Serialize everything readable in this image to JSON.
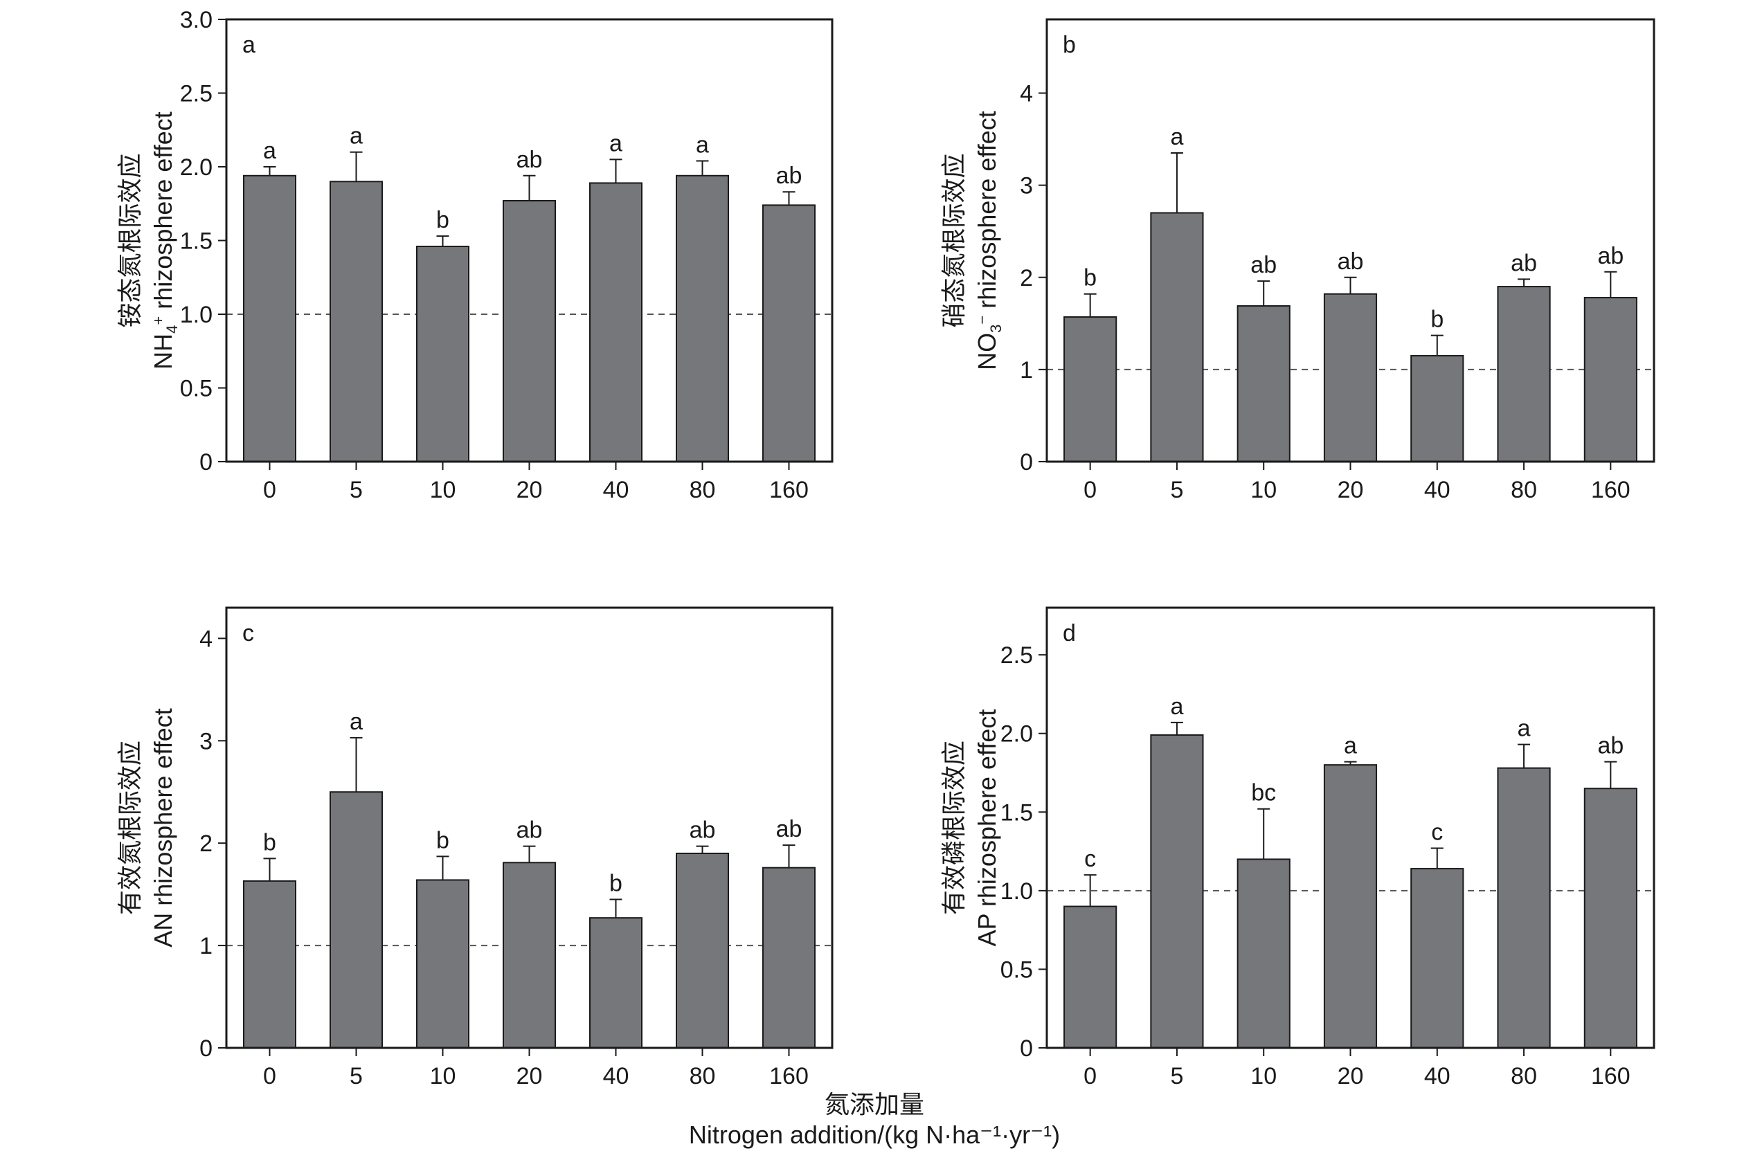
{
  "chart_data": [
    {
      "type": "bar",
      "panel": "a",
      "ylabel_zh": "铵态氮根际效应",
      "ylabel_en": {
        "pre": "NH",
        "sub": "4",
        "sup": "+",
        "post": " rhizosphere effect"
      },
      "categories": [
        "0",
        "5",
        "10",
        "20",
        "40",
        "80",
        "160"
      ],
      "values": [
        1.94,
        1.9,
        1.46,
        1.77,
        1.89,
        1.94,
        1.74
      ],
      "errors": [
        0.06,
        0.2,
        0.07,
        0.17,
        0.16,
        0.1,
        0.09
      ],
      "significance": [
        "a",
        "a",
        "b",
        "ab",
        "a",
        "a",
        "ab"
      ],
      "ylim": [
        0,
        3.0
      ],
      "yticks": [
        0,
        0.5,
        1.0,
        1.5,
        2.0,
        2.5,
        3.0
      ],
      "ytick_labels": [
        "0",
        "0.5",
        "1.0",
        "1.5",
        "2.0",
        "2.5",
        "3.0"
      ],
      "reference_line": 1.0
    },
    {
      "type": "bar",
      "panel": "b",
      "ylabel_zh": "硝态氮根际效应",
      "ylabel_en": {
        "pre": "NO",
        "sub": "3",
        "sup": "−",
        "post": " rhizosphere effect"
      },
      "categories": [
        "0",
        "5",
        "10",
        "20",
        "40",
        "80",
        "160"
      ],
      "values": [
        1.57,
        2.7,
        1.69,
        1.82,
        1.15,
        1.9,
        1.78
      ],
      "errors": [
        0.25,
        0.65,
        0.27,
        0.18,
        0.22,
        0.08,
        0.28
      ],
      "significance": [
        "b",
        "a",
        "ab",
        "ab",
        "b",
        "ab",
        "ab"
      ],
      "ylim": [
        0,
        4.8
      ],
      "yticks": [
        0,
        1,
        2,
        3,
        4
      ],
      "ytick_labels": [
        "0",
        "1",
        "2",
        "3",
        "4"
      ],
      "reference_line": 1.0
    },
    {
      "type": "bar",
      "panel": "c",
      "ylabel_zh": "有效氮根际效应",
      "ylabel_en": {
        "pre": "AN rhizosphere effect",
        "sub": "",
        "sup": "",
        "post": ""
      },
      "categories": [
        "0",
        "5",
        "10",
        "20",
        "40",
        "80",
        "160"
      ],
      "values": [
        1.63,
        2.5,
        1.64,
        1.81,
        1.27,
        1.9,
        1.76
      ],
      "errors": [
        0.22,
        0.53,
        0.23,
        0.16,
        0.18,
        0.07,
        0.22
      ],
      "significance": [
        "b",
        "a",
        "b",
        "ab",
        "b",
        "ab",
        "ab"
      ],
      "ylim": [
        0,
        4.3
      ],
      "yticks": [
        0,
        1,
        2,
        3,
        4
      ],
      "ytick_labels": [
        "0",
        "1",
        "2",
        "3",
        "4"
      ],
      "reference_line": 1.0
    },
    {
      "type": "bar",
      "panel": "d",
      "ylabel_zh": "有效磷根际效应",
      "ylabel_en": {
        "pre": "AP rhizosphere effect",
        "sub": "",
        "sup": "",
        "post": ""
      },
      "categories": [
        "0",
        "5",
        "10",
        "20",
        "40",
        "80",
        "160"
      ],
      "values": [
        0.9,
        1.99,
        1.2,
        1.8,
        1.14,
        1.78,
        1.65
      ],
      "errors": [
        0.2,
        0.08,
        0.32,
        0.02,
        0.13,
        0.15,
        0.17
      ],
      "significance": [
        "c",
        "a",
        "bc",
        "a",
        "c",
        "a",
        "ab"
      ],
      "ylim": [
        0,
        2.8
      ],
      "yticks": [
        0,
        0.5,
        1.0,
        1.5,
        2.0,
        2.5
      ],
      "ytick_labels": [
        "0",
        "0.5",
        "1.0",
        "1.5",
        "2.0",
        "2.5"
      ],
      "reference_line": 1.0
    }
  ],
  "xlabel_zh": "氮添加量",
  "xlabel_en": "Nitrogen addition/(kg N·ha⁻¹·yr⁻¹)",
  "colors": {
    "bar": "#76777b",
    "axis": "#1a1a1a",
    "reference": "#555555"
  }
}
